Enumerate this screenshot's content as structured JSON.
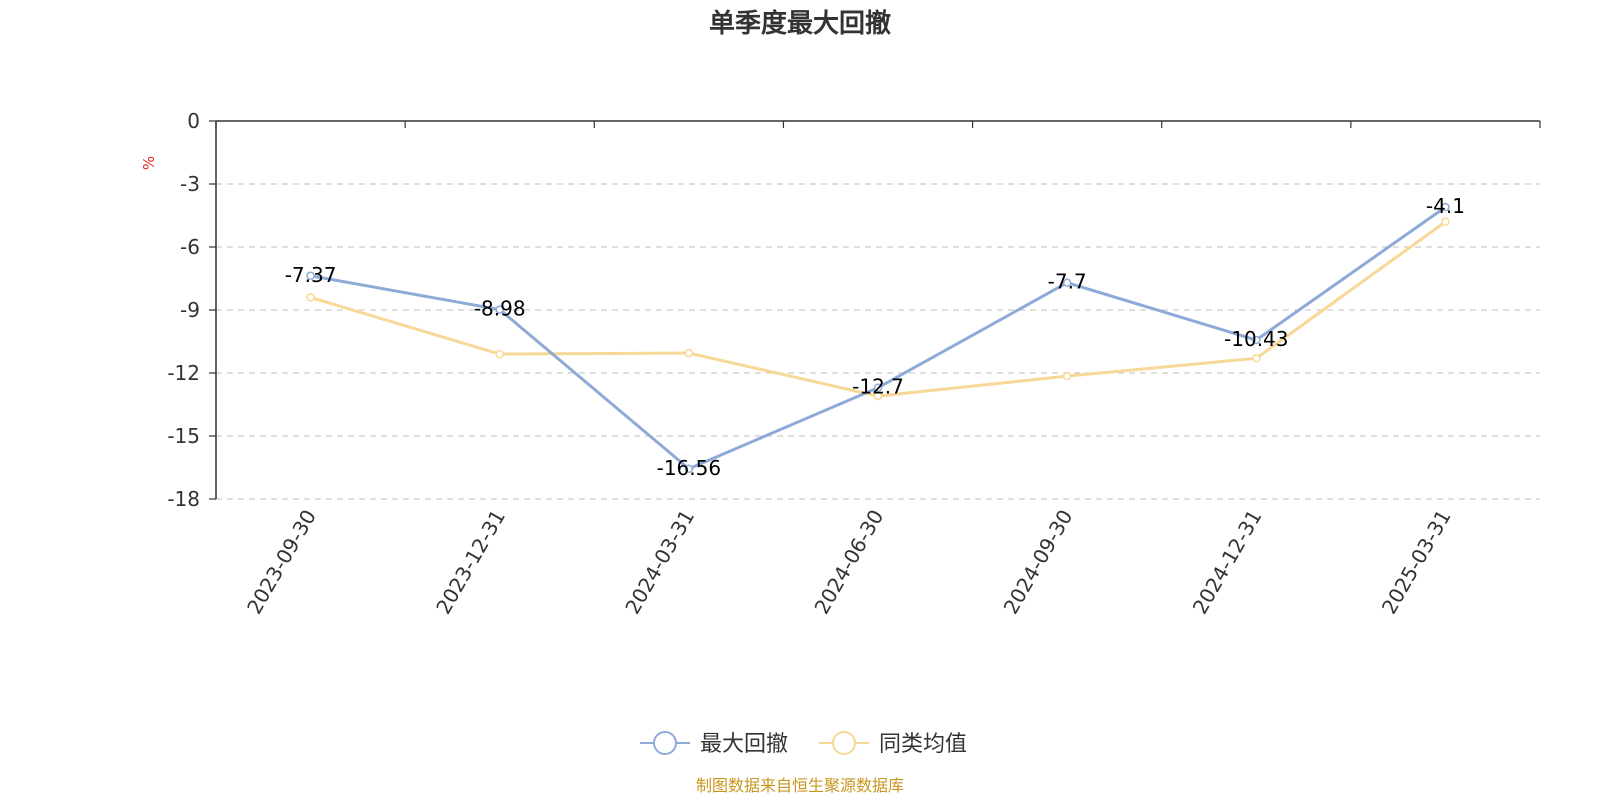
{
  "chart_data": {
    "type": "line",
    "title": "单季度最大回撤",
    "ylabel": "%",
    "categories": [
      "2023-09-30",
      "2023-12-31",
      "2024-03-31",
      "2024-06-30",
      "2024-09-30",
      "2024-12-31",
      "2025-03-31"
    ],
    "ylim": [
      -18,
      0
    ],
    "yticks": [
      0,
      -3,
      -6,
      -9,
      -12,
      -15,
      -18
    ],
    "grid": true,
    "legend_position": "bottom",
    "series": [
      {
        "name": "最大回撤",
        "values": [
          -7.37,
          -8.98,
          -16.56,
          -12.7,
          -7.7,
          -10.43,
          -4.1
        ],
        "color": "#8eaad8",
        "show_labels": true
      },
      {
        "name": "同类均值",
        "values": [
          -8.4,
          -11.1,
          -11.05,
          -13.1,
          -12.15,
          -11.3,
          -4.8
        ],
        "color": "#f8d897",
        "show_labels": false
      }
    ]
  },
  "footer": {
    "source": "制图数据来自恒生聚源数据库",
    "source_color": "#c8961e"
  },
  "colors": {
    "axis": "#333333",
    "grid": "#cccccc",
    "unit": "#e8262a"
  }
}
